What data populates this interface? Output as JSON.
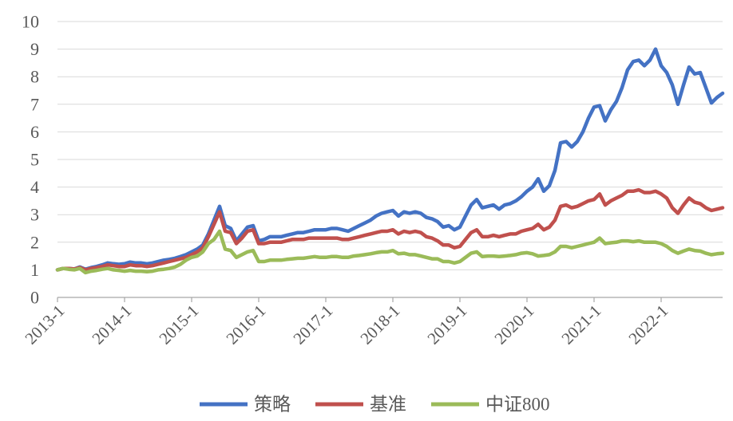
{
  "chart_data": {
    "type": "line",
    "xlim": [
      "2013-01",
      "2022-12"
    ],
    "ylim": [
      0,
      10
    ],
    "grid": "horizontal",
    "legend": "bottom",
    "xticks": [
      "2013-1",
      "2014-1",
      "2015-1",
      "2016-1",
      "2017-1",
      "2018-1",
      "2019-1",
      "2020-1",
      "2021-1",
      "2022-1"
    ],
    "yticks": [
      "0",
      "1",
      "2",
      "3",
      "4",
      "5",
      "6",
      "7",
      "8",
      "9",
      "10"
    ],
    "x": [
      "2013-01",
      "2013-02",
      "2013-03",
      "2013-04",
      "2013-05",
      "2013-06",
      "2013-07",
      "2013-08",
      "2013-09",
      "2013-10",
      "2013-11",
      "2013-12",
      "2014-01",
      "2014-02",
      "2014-03",
      "2014-04",
      "2014-05",
      "2014-06",
      "2014-07",
      "2014-08",
      "2014-09",
      "2014-10",
      "2014-11",
      "2014-12",
      "2015-01",
      "2015-02",
      "2015-03",
      "2015-04",
      "2015-05",
      "2015-06",
      "2015-07",
      "2015-08",
      "2015-09",
      "2015-10",
      "2015-11",
      "2015-12",
      "2016-01",
      "2016-02",
      "2016-03",
      "2016-04",
      "2016-05",
      "2016-06",
      "2016-07",
      "2016-08",
      "2016-09",
      "2016-10",
      "2016-11",
      "2016-12",
      "2017-01",
      "2017-02",
      "2017-03",
      "2017-04",
      "2017-05",
      "2017-06",
      "2017-07",
      "2017-08",
      "2017-09",
      "2017-10",
      "2017-11",
      "2017-12",
      "2018-01",
      "2018-02",
      "2018-03",
      "2018-04",
      "2018-05",
      "2018-06",
      "2018-07",
      "2018-08",
      "2018-09",
      "2018-10",
      "2018-11",
      "2018-12",
      "2019-01",
      "2019-02",
      "2019-03",
      "2019-04",
      "2019-05",
      "2019-06",
      "2019-07",
      "2019-08",
      "2019-09",
      "2019-10",
      "2019-11",
      "2019-12",
      "2020-01",
      "2020-02",
      "2020-03",
      "2020-04",
      "2020-05",
      "2020-06",
      "2020-07",
      "2020-08",
      "2020-09",
      "2020-10",
      "2020-11",
      "2020-12",
      "2021-01",
      "2021-02",
      "2021-03",
      "2021-04",
      "2021-05",
      "2021-06",
      "2021-07",
      "2021-08",
      "2021-09",
      "2021-10",
      "2021-11",
      "2021-12",
      "2022-01",
      "2022-02",
      "2022-03",
      "2022-04",
      "2022-05",
      "2022-06",
      "2022-07",
      "2022-08",
      "2022-09",
      "2022-10",
      "2022-11",
      "2022-12"
    ],
    "series": [
      {
        "name": "策略",
        "color": "#4472C4",
        "values": [
          1.0,
          1.05,
          1.05,
          1.03,
          1.1,
          1.02,
          1.08,
          1.12,
          1.18,
          1.25,
          1.22,
          1.2,
          1.22,
          1.28,
          1.25,
          1.25,
          1.22,
          1.25,
          1.3,
          1.35,
          1.38,
          1.42,
          1.48,
          1.55,
          1.65,
          1.75,
          1.9,
          2.3,
          2.8,
          3.3,
          2.6,
          2.5,
          2.05,
          2.3,
          2.55,
          2.6,
          2.05,
          2.1,
          2.2,
          2.2,
          2.2,
          2.25,
          2.3,
          2.35,
          2.35,
          2.4,
          2.45,
          2.45,
          2.45,
          2.5,
          2.5,
          2.45,
          2.4,
          2.5,
          2.6,
          2.7,
          2.8,
          2.95,
          3.05,
          3.1,
          3.15,
          2.95,
          3.1,
          3.05,
          3.1,
          3.05,
          2.9,
          2.85,
          2.75,
          2.55,
          2.6,
          2.45,
          2.55,
          2.95,
          3.35,
          3.55,
          3.25,
          3.3,
          3.35,
          3.2,
          3.35,
          3.4,
          3.5,
          3.65,
          3.85,
          4.0,
          4.3,
          3.85,
          4.05,
          4.6,
          5.6,
          5.65,
          5.45,
          5.65,
          6.0,
          6.5,
          6.9,
          6.95,
          6.4,
          6.8,
          7.1,
          7.6,
          8.25,
          8.55,
          8.6,
          8.4,
          8.6,
          9.0,
          8.4,
          8.15,
          7.7,
          7.0,
          7.7,
          8.35,
          8.1,
          8.15,
          7.6,
          7.05,
          7.25,
          7.4
        ]
      },
      {
        "name": "基准",
        "color": "#C0504D",
        "values": [
          1.0,
          1.05,
          1.05,
          1.03,
          1.08,
          1.0,
          1.05,
          1.08,
          1.12,
          1.18,
          1.15,
          1.12,
          1.12,
          1.18,
          1.15,
          1.15,
          1.12,
          1.15,
          1.2,
          1.25,
          1.3,
          1.35,
          1.4,
          1.45,
          1.55,
          1.65,
          1.8,
          2.2,
          2.65,
          3.1,
          2.4,
          2.35,
          1.95,
          2.15,
          2.4,
          2.45,
          1.95,
          1.95,
          2.0,
          2.0,
          2.0,
          2.05,
          2.1,
          2.1,
          2.1,
          2.15,
          2.15,
          2.15,
          2.15,
          2.15,
          2.15,
          2.1,
          2.1,
          2.15,
          2.2,
          2.25,
          2.3,
          2.35,
          2.4,
          2.4,
          2.45,
          2.3,
          2.4,
          2.35,
          2.4,
          2.35,
          2.2,
          2.15,
          2.05,
          1.9,
          1.9,
          1.8,
          1.85,
          2.1,
          2.35,
          2.45,
          2.2,
          2.2,
          2.25,
          2.2,
          2.25,
          2.3,
          2.3,
          2.4,
          2.45,
          2.5,
          2.65,
          2.45,
          2.55,
          2.8,
          3.3,
          3.35,
          3.25,
          3.3,
          3.4,
          3.5,
          3.55,
          3.75,
          3.35,
          3.5,
          3.6,
          3.7,
          3.85,
          3.85,
          3.9,
          3.8,
          3.8,
          3.85,
          3.75,
          3.6,
          3.25,
          3.05,
          3.35,
          3.6,
          3.45,
          3.4,
          3.25,
          3.15,
          3.2,
          3.25
        ]
      },
      {
        "name": "中证800",
        "color": "#9BBB59",
        "values": [
          1.0,
          1.05,
          1.02,
          1.0,
          1.05,
          0.9,
          0.95,
          0.98,
          1.02,
          1.05,
          1.0,
          0.98,
          0.95,
          0.98,
          0.95,
          0.95,
          0.93,
          0.95,
          1.0,
          1.02,
          1.05,
          1.1,
          1.2,
          1.35,
          1.45,
          1.5,
          1.65,
          1.95,
          2.1,
          2.4,
          1.75,
          1.7,
          1.45,
          1.55,
          1.65,
          1.7,
          1.3,
          1.3,
          1.35,
          1.35,
          1.35,
          1.38,
          1.4,
          1.42,
          1.42,
          1.45,
          1.48,
          1.45,
          1.45,
          1.48,
          1.48,
          1.45,
          1.45,
          1.5,
          1.52,
          1.55,
          1.58,
          1.62,
          1.65,
          1.65,
          1.7,
          1.58,
          1.6,
          1.55,
          1.55,
          1.5,
          1.45,
          1.4,
          1.4,
          1.3,
          1.3,
          1.25,
          1.3,
          1.45,
          1.6,
          1.65,
          1.48,
          1.5,
          1.5,
          1.48,
          1.5,
          1.52,
          1.55,
          1.6,
          1.62,
          1.58,
          1.5,
          1.52,
          1.55,
          1.65,
          1.85,
          1.85,
          1.8,
          1.85,
          1.9,
          1.95,
          2.0,
          2.15,
          1.95,
          1.98,
          2.0,
          2.05,
          2.05,
          2.02,
          2.05,
          2.0,
          2.0,
          2.0,
          1.95,
          1.85,
          1.7,
          1.6,
          1.68,
          1.75,
          1.7,
          1.68,
          1.6,
          1.55,
          1.58,
          1.6
        ]
      }
    ]
  }
}
